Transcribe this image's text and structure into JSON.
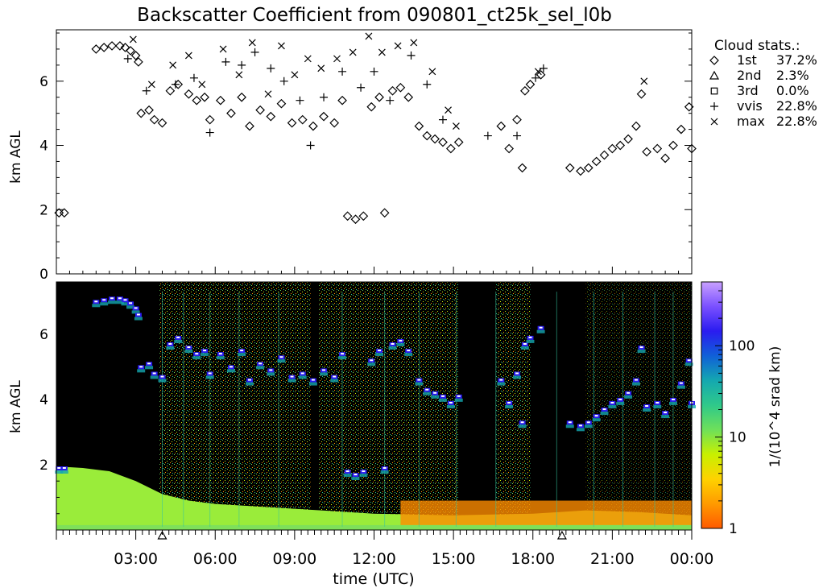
{
  "title": "Backscatter Coefficient from 090801_ct25k_sel_l0b",
  "chart_data": [
    {
      "type": "scatter",
      "ylabel": "km AGL",
      "ylim": [
        0,
        7.6
      ],
      "xlim": [
        0,
        24
      ],
      "yticks": [
        "0",
        "2",
        "4",
        "6"
      ],
      "legend_title": "Cloud stats.:",
      "legend_placement": "right",
      "legend": [
        {
          "marker": "diamond",
          "label": "1st",
          "pct": "37.2%"
        },
        {
          "marker": "triangle",
          "label": "2nd",
          "pct": "2.3%"
        },
        {
          "marker": "square",
          "label": "3rd",
          "pct": "0.0%"
        },
        {
          "marker": "plus",
          "label": "vvis",
          "pct": "22.8%"
        },
        {
          "marker": "x",
          "label": "max",
          "pct": "22.8%"
        }
      ],
      "series": [
        {
          "marker": "diamond",
          "points": [
            [
              0.1,
              1.9
            ],
            [
              0.3,
              1.9
            ],
            [
              1.5,
              7.0
            ],
            [
              1.8,
              7.05
            ],
            [
              2.1,
              7.1
            ],
            [
              2.4,
              7.1
            ],
            [
              2.6,
              7.05
            ],
            [
              2.8,
              6.95
            ],
            [
              3.0,
              6.8
            ],
            [
              3.1,
              6.6
            ],
            [
              3.2,
              5.0
            ],
            [
              3.5,
              5.1
            ],
            [
              3.7,
              4.8
            ],
            [
              4.0,
              4.7
            ],
            [
              4.3,
              5.7
            ],
            [
              4.6,
              5.9
            ],
            [
              5.0,
              5.6
            ],
            [
              5.3,
              5.4
            ],
            [
              5.6,
              5.5
            ],
            [
              5.8,
              4.8
            ],
            [
              6.2,
              5.4
            ],
            [
              6.6,
              5.0
            ],
            [
              7.0,
              5.5
            ],
            [
              7.3,
              4.6
            ],
            [
              7.7,
              5.1
            ],
            [
              8.1,
              4.9
            ],
            [
              8.5,
              5.3
            ],
            [
              8.9,
              4.7
            ],
            [
              9.3,
              4.8
            ],
            [
              9.7,
              4.6
            ],
            [
              10.1,
              4.9
            ],
            [
              10.5,
              4.7
            ],
            [
              10.8,
              5.4
            ],
            [
              11.0,
              1.8
            ],
            [
              11.3,
              1.7
            ],
            [
              11.6,
              1.8
            ],
            [
              11.9,
              5.2
            ],
            [
              12.2,
              5.5
            ],
            [
              12.4,
              1.9
            ],
            [
              12.7,
              5.7
            ],
            [
              13.0,
              5.8
            ],
            [
              13.3,
              5.5
            ],
            [
              13.7,
              4.6
            ],
            [
              14.0,
              4.3
            ],
            [
              14.3,
              4.2
            ],
            [
              14.6,
              4.1
            ],
            [
              14.9,
              3.9
            ],
            [
              15.2,
              4.1
            ],
            [
              16.8,
              4.6
            ],
            [
              17.1,
              3.9
            ],
            [
              17.4,
              4.8
            ],
            [
              17.7,
              5.7
            ],
            [
              17.9,
              5.9
            ],
            [
              18.3,
              6.2
            ],
            [
              17.6,
              3.3
            ],
            [
              19.4,
              3.3
            ],
            [
              19.8,
              3.2
            ],
            [
              20.1,
              3.3
            ],
            [
              20.4,
              3.5
            ],
            [
              20.7,
              3.7
            ],
            [
              21.0,
              3.9
            ],
            [
              21.3,
              4.0
            ],
            [
              21.6,
              4.2
            ],
            [
              21.9,
              4.6
            ],
            [
              22.1,
              5.6
            ],
            [
              22.3,
              3.8
            ],
            [
              22.7,
              3.9
            ],
            [
              23.0,
              3.6
            ],
            [
              23.3,
              4.0
            ],
            [
              23.6,
              4.5
            ],
            [
              23.9,
              5.2
            ],
            [
              24.0,
              3.9
            ]
          ]
        },
        {
          "marker": "plus",
          "points": [
            [
              2.7,
              6.7
            ],
            [
              3.4,
              5.7
            ],
            [
              4.5,
              5.9
            ],
            [
              5.2,
              6.1
            ],
            [
              5.8,
              4.4
            ],
            [
              6.4,
              6.6
            ],
            [
              7.0,
              6.5
            ],
            [
              7.5,
              6.9
            ],
            [
              8.1,
              6.4
            ],
            [
              8.6,
              6.0
            ],
            [
              9.2,
              5.4
            ],
            [
              9.6,
              4.0
            ],
            [
              10.1,
              5.5
            ],
            [
              10.8,
              6.3
            ],
            [
              11.5,
              5.8
            ],
            [
              12.0,
              6.3
            ],
            [
              12.6,
              5.4
            ],
            [
              13.4,
              6.8
            ],
            [
              14.0,
              5.9
            ],
            [
              14.6,
              4.8
            ],
            [
              17.4,
              4.3
            ],
            [
              18.1,
              6.1
            ],
            [
              18.4,
              6.4
            ],
            [
              16.3,
              4.3
            ]
          ]
        },
        {
          "marker": "x",
          "points": [
            [
              2.9,
              7.3
            ],
            [
              3.6,
              5.9
            ],
            [
              4.4,
              6.5
            ],
            [
              5.0,
              6.8
            ],
            [
              5.5,
              5.9
            ],
            [
              6.3,
              7.0
            ],
            [
              6.9,
              6.2
            ],
            [
              7.4,
              7.2
            ],
            [
              8.0,
              5.6
            ],
            [
              8.5,
              7.1
            ],
            [
              9.0,
              6.2
            ],
            [
              9.5,
              6.7
            ],
            [
              10.0,
              6.4
            ],
            [
              10.6,
              6.7
            ],
            [
              11.2,
              6.9
            ],
            [
              11.8,
              7.4
            ],
            [
              12.3,
              6.9
            ],
            [
              12.9,
              7.1
            ],
            [
              13.5,
              7.2
            ],
            [
              14.2,
              6.3
            ],
            [
              14.8,
              5.1
            ],
            [
              15.1,
              4.6
            ],
            [
              18.2,
              6.3
            ],
            [
              22.2,
              6.0
            ]
          ]
        }
      ]
    },
    {
      "type": "heatmap",
      "ylabel": "km AGL",
      "ylim": [
        0,
        7.6
      ],
      "xlabel": "time (UTC)",
      "xticks": [
        "03:00",
        "06:00",
        "09:00",
        "12:00",
        "15:00",
        "18:00",
        "21:00",
        "00:00"
      ],
      "yticks": [
        "2",
        "4",
        "6"
      ],
      "marker_triangles_at_hours": [
        4.0,
        19.1
      ],
      "colorbar": {
        "label": "1/(10^4 srad km)",
        "scale": "log",
        "ticks": [
          "1",
          "10",
          "100"
        ],
        "colors": [
          "#ff5a00",
          "#ff9a00",
          "#ffd200",
          "#c8f000",
          "#6ee05a",
          "#2fc98a",
          "#14a8b0",
          "#1060d8",
          "#2a1cf0",
          "#7a50ff",
          "#c8a0ff"
        ]
      }
    }
  ]
}
